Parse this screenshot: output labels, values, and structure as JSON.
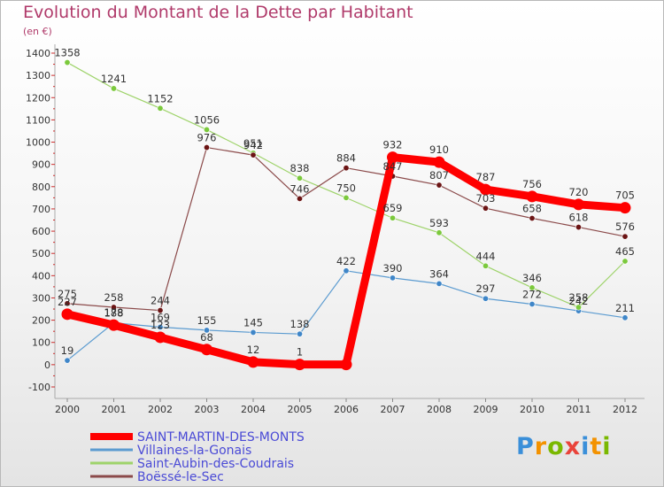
{
  "title": "Evolution du Montant de la Dette par Habitant",
  "subtitle": "(en €)",
  "logo": {
    "text": "Proxiti",
    "colors": [
      "#3a8fd9",
      "#f39200",
      "#7ab800",
      "#e9433a",
      "#3a8fd9",
      "#f39200",
      "#7ab800"
    ]
  },
  "chart_data": {
    "type": "line",
    "title": "Evolution du Montant de la Dette par Habitant",
    "ylabel": "(en €)",
    "xlabel": "",
    "ylim": [
      -100,
      1400
    ],
    "yticks": [
      -100,
      0,
      100,
      200,
      300,
      400,
      500,
      600,
      700,
      800,
      900,
      1000,
      1100,
      1200,
      1300,
      1400
    ],
    "x": [
      "2000",
      "2001",
      "2002",
      "2003",
      "2004",
      "2005",
      "2006",
      "2007",
      "2008",
      "2009",
      "2010",
      "2011",
      "2012"
    ],
    "legend_position": "bottom-left",
    "series": [
      {
        "name": "Villaines-la-Gonais",
        "color": "#5b9bd0",
        "marker": "#3f86c8",
        "width": 1.2,
        "values": [
          19,
          188,
          169,
          155,
          145,
          138,
          422,
          390,
          364,
          297,
          272,
          242,
          211
        ],
        "labels": [
          "19",
          "188",
          "169",
          "155",
          "145",
          "138",
          "422",
          "390",
          "364",
          "297",
          "272",
          "242",
          "211"
        ]
      },
      {
        "name": "Saint-Aubin-des-Coudrais",
        "color": "#9ed36a",
        "marker": "#7bc93c",
        "width": 1.2,
        "values": [
          1358,
          1241,
          1152,
          1056,
          951,
          838,
          750,
          659,
          593,
          444,
          346,
          258,
          465
        ],
        "labels": [
          "1358",
          "1241",
          "1152",
          "1056",
          "951",
          "838",
          "750",
          "659",
          "593",
          "444",
          "346",
          "258",
          "465"
        ]
      },
      {
        "name": "Boëssé-le-Sec",
        "color": "#8b4a4a",
        "marker": "#6b1414",
        "width": 1.2,
        "values": [
          275,
          258,
          244,
          976,
          942,
          746,
          884,
          847,
          807,
          703,
          658,
          618,
          576
        ],
        "labels": [
          "275",
          "258",
          "244",
          "976",
          "942",
          "746",
          "884",
          "847",
          "807",
          "703",
          "658",
          "618",
          "576"
        ]
      },
      {
        "name": "SAINT-MARTIN-DES-MONTS",
        "color": "#ff0000",
        "marker": "#ff0000",
        "width": 9,
        "values": [
          227,
          178,
          123,
          68,
          12,
          1,
          1,
          932,
          910,
          787,
          756,
          720,
          705
        ],
        "labels": [
          "227",
          "178",
          "123",
          "68",
          "12",
          "1",
          "",
          "932",
          "910",
          "787",
          "756",
          "720",
          "705"
        ]
      }
    ]
  }
}
